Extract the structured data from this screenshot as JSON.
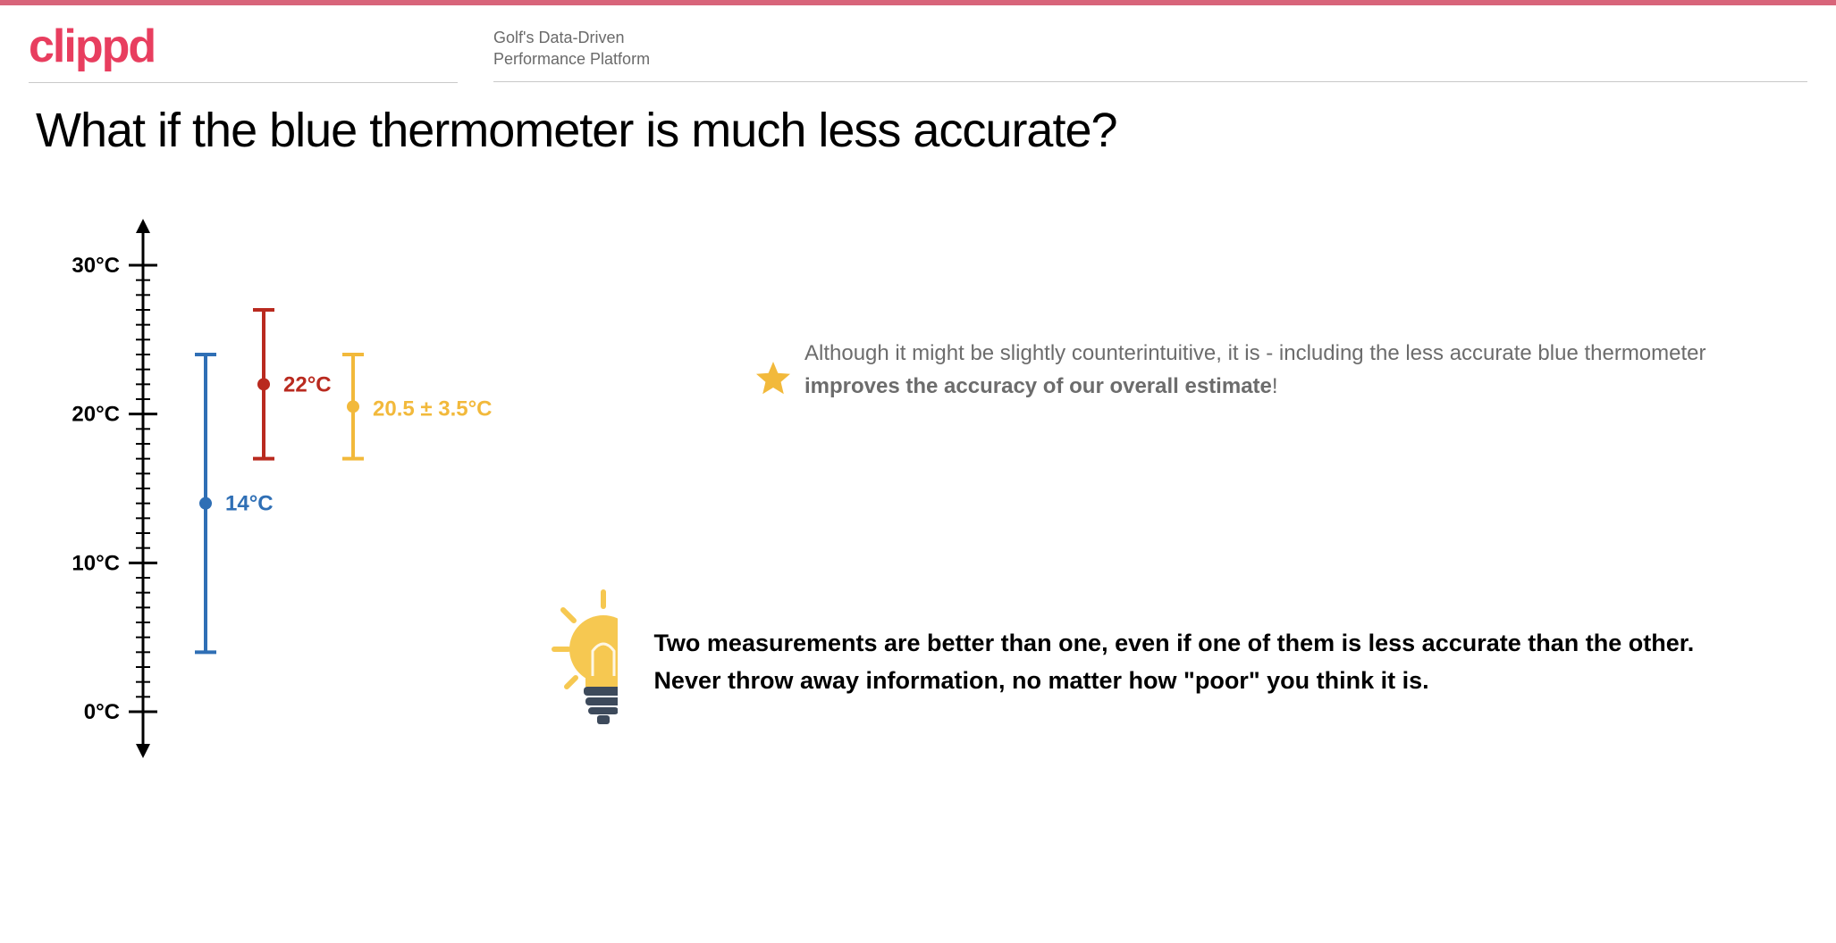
{
  "brand": {
    "logo_text": "clippd",
    "logo_color": "#e83e5f",
    "accent_bar_color": "#d8647a",
    "tagline_line1": "Golf's Data-Driven",
    "tagline_line2": "Performance Platform"
  },
  "title": "What if the blue thermometer is much less accurate?",
  "explanation": {
    "pre": "Although it might be slightly counterintuitive, it is - including the less accurate blue thermometer ",
    "bold": "improves the accuracy of our overall estimate",
    "post": "!"
  },
  "conclusion": "Two measurements are better than one, even if one of them is less accurate than the other. Never throw away information, no matter how \"poor\" you think it is.",
  "chart": {
    "type": "errorbar-axis",
    "y_min": -3,
    "y_max": 33,
    "major_ticks": [
      0,
      10,
      20,
      30
    ],
    "minor_tick_step": 1,
    "major_tick_labels": [
      "0°C",
      "10°C",
      "20°C",
      "30°C"
    ],
    "axis_color": "#000000",
    "background_color": "#ffffff",
    "label_fontsize": 24,
    "series": [
      {
        "name": "blue",
        "x_offset": 70,
        "value": 14,
        "err_low": 4,
        "err_high": 24,
        "color": "#2f6fb5",
        "label": "14°C",
        "label_dx": 22,
        "label_dy": 8
      },
      {
        "name": "red",
        "x_offset": 135,
        "value": 22,
        "err_low": 17,
        "err_high": 27,
        "color": "#b92a1f",
        "label": "22°C",
        "label_dx": 22,
        "label_dy": 8
      },
      {
        "name": "yellow",
        "x_offset": 235,
        "value": 20.5,
        "err_low": 17,
        "err_high": 24,
        "color": "#f2b93b",
        "label": "20.5 ± 3.5°C",
        "label_dx": 22,
        "label_dy": 10
      }
    ],
    "star": {
      "color": "#f2b93b",
      "size": 40
    },
    "bulb": {
      "glass_color": "#f6c851",
      "base_color": "#3d4a5b",
      "ray_color": "#f6c851"
    }
  }
}
